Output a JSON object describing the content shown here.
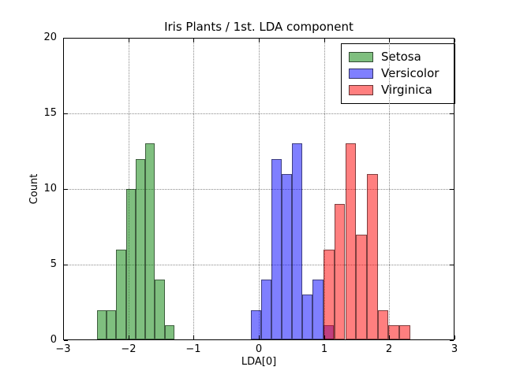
{
  "figure": {
    "title": "Iris Plants / 1st. LDA component",
    "xlabel": "LDA[0]",
    "ylabel": "Count"
  },
  "axes": {
    "xlim": [
      -3,
      3
    ],
    "ylim": [
      0,
      20
    ],
    "x_ticks": [
      -3,
      -2,
      -1,
      0,
      1,
      2,
      3
    ],
    "x_tick_labels": [
      "−3",
      "−2",
      "−1",
      "0",
      "1",
      "2",
      "3"
    ],
    "y_ticks": [
      0,
      5,
      10,
      15,
      20
    ],
    "y_tick_labels": [
      "0",
      "5",
      "10",
      "15",
      "20"
    ],
    "grid": "dotted gray"
  },
  "legend": {
    "position": "upper-right",
    "items": [
      {
        "label": "Setosa",
        "color": "#008000",
        "swatch_hex": "#7fbf7f"
      },
      {
        "label": "Versicolor",
        "color": "#0000ff",
        "swatch_hex": "#7f7fff"
      },
      {
        "label": "Virginica",
        "color": "#ff0000",
        "swatch_hex": "#ff7f7f"
      }
    ]
  },
  "chart_data": {
    "type": "bar",
    "subtype": "histogram",
    "title": "Iris Plants / 1st. LDA component",
    "xlabel": "LDA[0]",
    "ylabel": "Count",
    "xlim": [
      -3,
      3
    ],
    "ylim": [
      0,
      20
    ],
    "grid": true,
    "legend_position": "upper right",
    "fill_alpha": 0.5,
    "series": [
      {
        "name": "Setosa",
        "color": "#008000",
        "bin_start": -2.484,
        "bin_width": 0.1487,
        "counts": [
          2,
          2,
          6,
          10,
          12,
          13,
          4,
          1
        ]
      },
      {
        "name": "Versicolor",
        "color": "#0000ff",
        "bin_start": -0.122,
        "bin_width": 0.1583,
        "counts": [
          2,
          4,
          12,
          11,
          13,
          3,
          4,
          1
        ]
      },
      {
        "name": "Virginica",
        "color": "#ff0000",
        "bin_start": 0.992,
        "bin_width": 0.1663,
        "counts": [
          6,
          9,
          13,
          7,
          11,
          2,
          1,
          1
        ]
      }
    ]
  }
}
